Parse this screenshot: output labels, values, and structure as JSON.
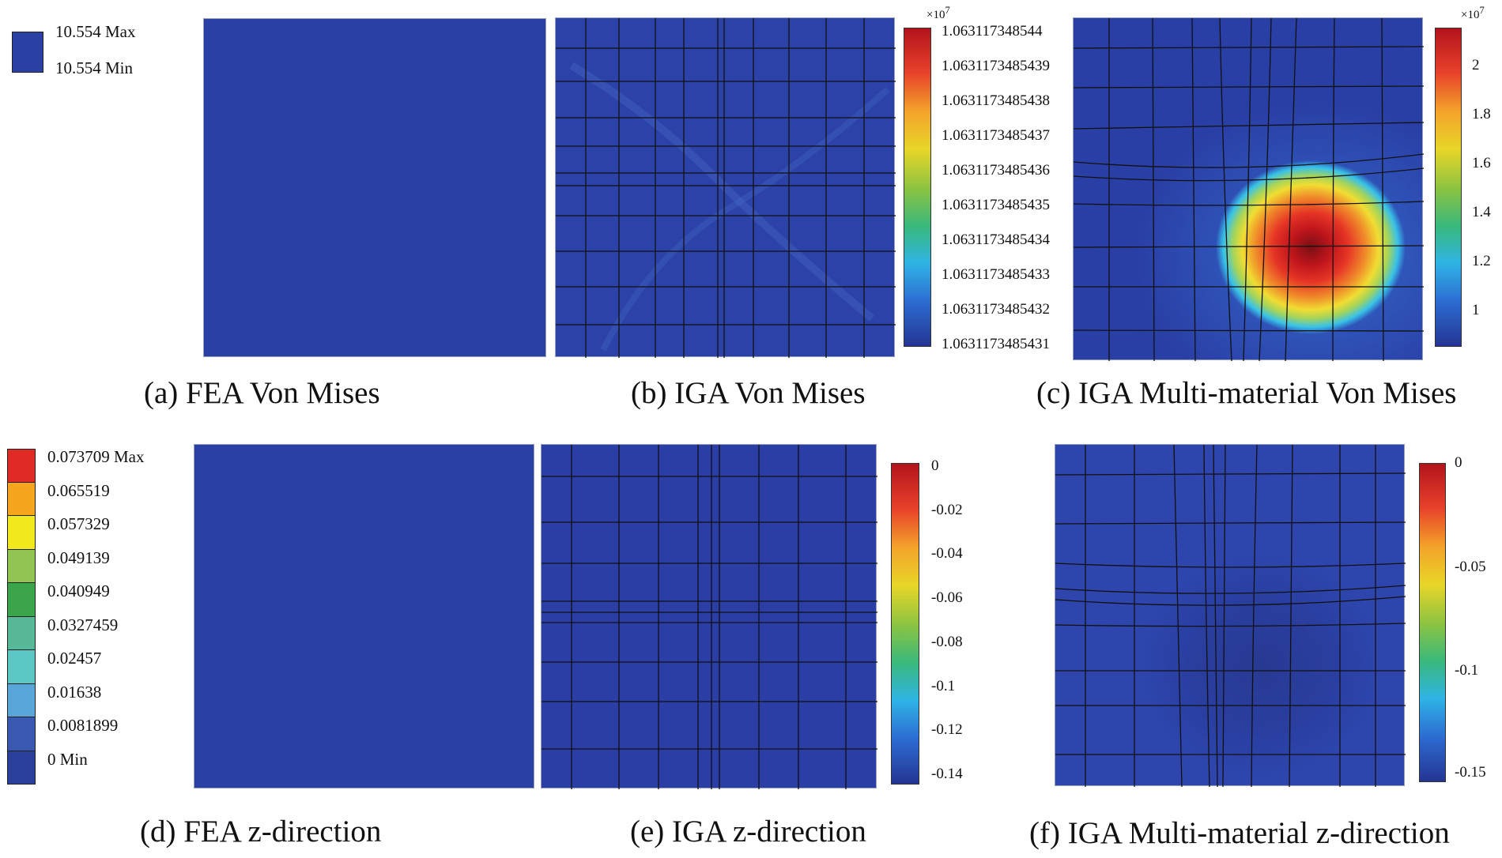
{
  "legend_a": {
    "max_label": "10.554 Max",
    "min_label": "10.554 Min",
    "color": "#2b40a4"
  },
  "colorbar_b": {
    "exponent_base": "×10",
    "exponent_power": "7",
    "ticks": [
      "1.063117348544",
      "1.0631173485439",
      "1.0631173485438",
      "1.0631173485437",
      "1.0631173485436",
      "1.0631173485435",
      "1.0631173485434",
      "1.0631173485433",
      "1.0631173485432",
      "1.0631173485431"
    ]
  },
  "colorbar_c": {
    "exponent_base": "×10",
    "exponent_power": "7",
    "ticks": [
      "2",
      "1.8",
      "1.6",
      "1.4",
      "1.2",
      "1"
    ]
  },
  "legend_d": {
    "entries": [
      {
        "label": "0.073709 Max",
        "color": "#e02a25"
      },
      {
        "label": "0.065519",
        "color": "#f5a51e"
      },
      {
        "label": "0.057329",
        "color": "#f1e81e"
      },
      {
        "label": "0.049139",
        "color": "#92c453"
      },
      {
        "label": "0.040949",
        "color": "#3aa54a"
      },
      {
        "label": "0.0327459",
        "color": "#57b997"
      },
      {
        "label": "0.02457",
        "color": "#5cc6c5"
      },
      {
        "label": "0.01638",
        "color": "#5aa6d8"
      },
      {
        "label": "0.0081899",
        "color": "#3a58b0"
      },
      {
        "label": "0 Min",
        "color": "#2b3f9c"
      }
    ]
  },
  "colorbar_e": {
    "ticks": [
      "0",
      "-0.02",
      "-0.04",
      "-0.06",
      "-0.08",
      "-0.1",
      "-0.12",
      "-0.14"
    ]
  },
  "colorbar_f": {
    "ticks": [
      "0",
      "-0.05",
      "-0.1",
      "-0.15"
    ]
  },
  "captions": {
    "a": "(a) FEA Von Mises",
    "b": "(b) IGA Von Mises",
    "c": "(c) IGA Multi-material Von Mises",
    "d": "(d) FEA z-direction",
    "e": "(e) IGA z-direction",
    "f": "(f) IGA Multi-material z-direction"
  }
}
